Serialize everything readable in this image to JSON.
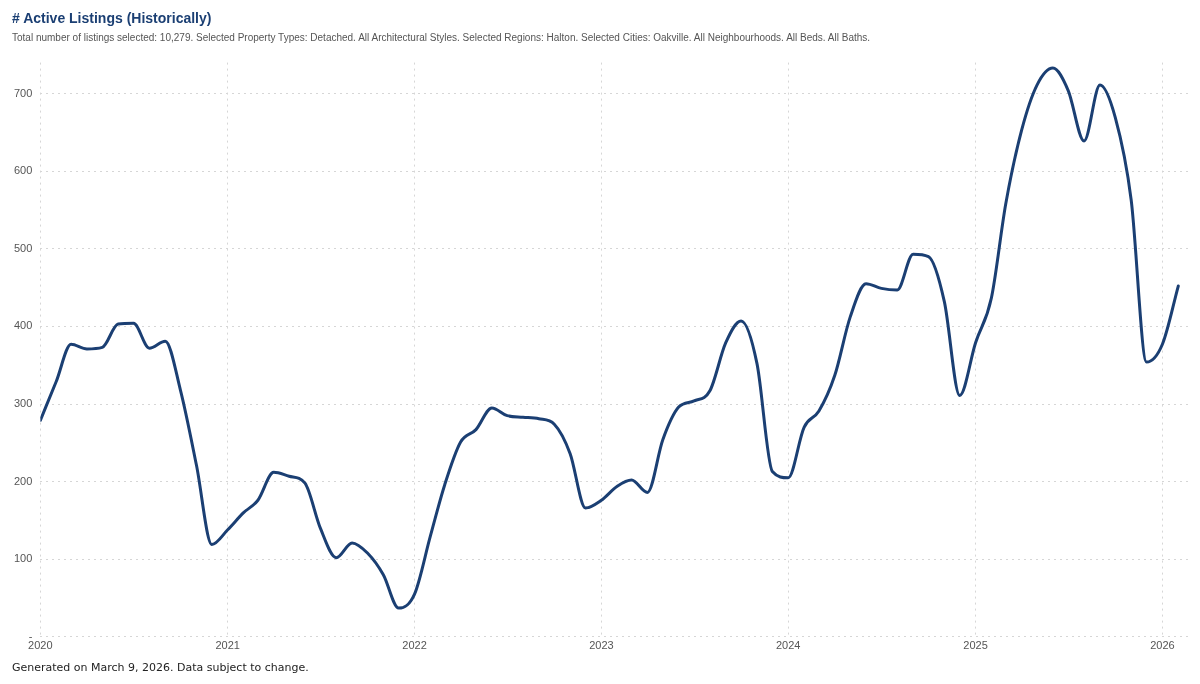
{
  "chart_data": {
    "type": "line",
    "title": "# Active Listings (Historically)",
    "subtitle": "Total number of listings selected: 10,279. Selected Property Types: Detached. All Architectural Styles. Selected Regions: Halton. Selected Cities: Oakville. All Neighbourhoods. All Beds. All Baths.",
    "annotations": [
      "Generated on March 9, 2026. Data subject to change."
    ],
    "x": [
      "2020-01",
      "2020-02",
      "2020-03",
      "2020-04",
      "2020-05",
      "2020-06",
      "2020-07",
      "2020-08",
      "2020-09",
      "2020-10",
      "2020-11",
      "2020-12",
      "2021-01",
      "2021-02",
      "2021-03",
      "2021-04",
      "2021-05",
      "2021-06",
      "2021-07",
      "2021-08",
      "2021-09",
      "2021-10",
      "2021-11",
      "2021-12",
      "2022-01",
      "2022-02",
      "2022-03",
      "2022-04",
      "2022-05",
      "2022-06",
      "2022-07",
      "2022-08",
      "2022-09",
      "2022-10",
      "2022-11",
      "2022-12",
      "2023-01",
      "2023-02",
      "2023-03",
      "2023-04",
      "2023-05",
      "2023-06",
      "2023-07",
      "2023-08",
      "2023-09",
      "2023-10",
      "2023-11",
      "2023-12",
      "2024-01",
      "2024-02",
      "2024-03",
      "2024-04",
      "2024-05",
      "2024-06",
      "2024-07",
      "2024-08",
      "2024-09",
      "2024-10",
      "2024-11",
      "2024-12",
      "2025-01",
      "2025-02",
      "2025-03",
      "2025-04",
      "2025-05",
      "2025-06",
      "2025-07",
      "2025-08",
      "2025-09",
      "2025-10",
      "2025-11",
      "2025-12",
      "2026-01",
      "2026-02"
    ],
    "series": [
      {
        "color": "#1b3f73",
        "values": [
          279,
          329,
          377,
          371,
          373,
          403,
          404,
          372,
          381,
          317,
          221,
          119,
          138,
          160,
          176,
          212,
          207,
          198,
          140,
          102,
          121,
          108,
          80,
          37,
          55,
          130,
          196,
          251,
          267,
          295,
          285,
          283,
          281,
          274,
          236,
          166,
          176,
          194,
          202,
          186,
          254,
          296,
          304,
          317,
          379,
          407,
          352,
          213,
          205,
          270,
          291,
          337,
          412,
          455,
          449,
          447,
          493,
          490,
          432,
          311,
          379,
          437,
          558,
          653,
          711,
          733,
          704,
          639,
          711,
          669,
          563,
          354,
          377,
          452
        ]
      }
    ],
    "xlim": [
      "2020-01-01",
      "2026-02-20"
    ],
    "xticks": [
      "2020",
      "2021",
      "2022",
      "2023",
      "2024",
      "2025",
      "2026"
    ],
    "ylim": [
      0,
      740
    ],
    "yticks": [
      {
        "value": 0,
        "label": "-"
      },
      100,
      200,
      300,
      400,
      500,
      600,
      700
    ],
    "grid": true,
    "legend": false,
    "marker": "none",
    "line_style": "solid"
  }
}
